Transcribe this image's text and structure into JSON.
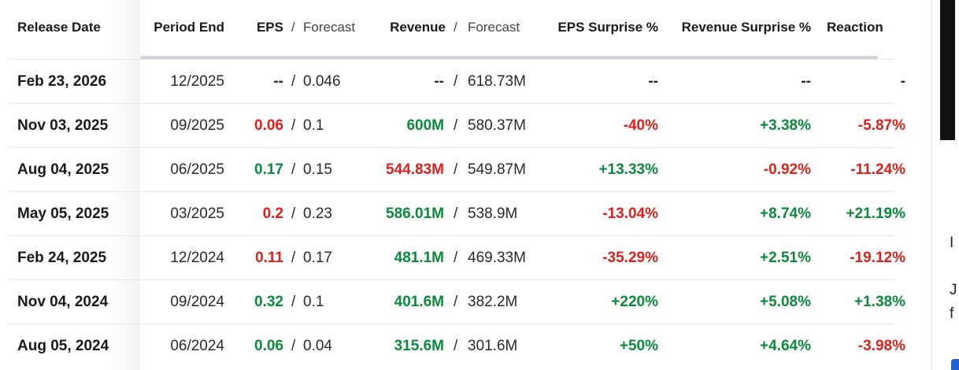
{
  "headers": {
    "release_date": "Release Date",
    "period_end": "Period End",
    "eps": "EPS",
    "eps_forecast": "Forecast",
    "revenue": "Revenue",
    "revenue_forecast": "Forecast",
    "slash": "/",
    "eps_surprise": "EPS Surprise %",
    "revenue_surprise": "Revenue Surprise %",
    "reaction": "Reaction"
  },
  "colors": {
    "positive": "#0a8a3a",
    "negative": "#e0201a"
  },
  "rows": [
    {
      "date": "Feb 23, 2026",
      "period": "12/2025",
      "eps": "--",
      "eps_fc": "0.046",
      "eps_c": "",
      "rev": "--",
      "rev_fc": "618.73M",
      "rev_c": "",
      "eps_s": "--",
      "eps_s_c": "",
      "rev_s": "--",
      "rev_s_c": "",
      "react": "-",
      "react_c": ""
    },
    {
      "date": "Nov 03, 2025",
      "period": "09/2025",
      "eps": "0.06",
      "eps_fc": "0.1",
      "eps_c": "r",
      "rev": "600M",
      "rev_fc": "580.37M",
      "rev_c": "g",
      "eps_s": "-40%",
      "eps_s_c": "r",
      "rev_s": "+3.38%",
      "rev_s_c": "g",
      "react": "-5.87%",
      "react_c": "r"
    },
    {
      "date": "Aug 04, 2025",
      "period": "06/2025",
      "eps": "0.17",
      "eps_fc": "0.15",
      "eps_c": "g",
      "rev": "544.83M",
      "rev_fc": "549.87M",
      "rev_c": "r",
      "eps_s": "+13.33%",
      "eps_s_c": "g",
      "rev_s": "-0.92%",
      "rev_s_c": "r",
      "react": "-11.24%",
      "react_c": "r"
    },
    {
      "date": "May 05, 2025",
      "period": "03/2025",
      "eps": "0.2",
      "eps_fc": "0.23",
      "eps_c": "r",
      "rev": "586.01M",
      "rev_fc": "538.9M",
      "rev_c": "g",
      "eps_s": "-13.04%",
      "eps_s_c": "r",
      "rev_s": "+8.74%",
      "rev_s_c": "g",
      "react": "+21.19%",
      "react_c": "g"
    },
    {
      "date": "Feb 24, 2025",
      "period": "12/2024",
      "eps": "0.11",
      "eps_fc": "0.17",
      "eps_c": "r",
      "rev": "481.1M",
      "rev_fc": "469.33M",
      "rev_c": "g",
      "eps_s": "-35.29%",
      "eps_s_c": "r",
      "rev_s": "+2.51%",
      "rev_s_c": "g",
      "react": "-19.12%",
      "react_c": "r"
    },
    {
      "date": "Nov 04, 2024",
      "period": "09/2024",
      "eps": "0.32",
      "eps_fc": "0.1",
      "eps_c": "g",
      "rev": "401.6M",
      "rev_fc": "382.2M",
      "rev_c": "g",
      "eps_s": "+220%",
      "eps_s_c": "g",
      "rev_s": "+5.08%",
      "rev_s_c": "g",
      "react": "+1.38%",
      "react_c": "g"
    },
    {
      "date": "Aug 05, 2024",
      "period": "06/2024",
      "eps": "0.06",
      "eps_fc": "0.04",
      "eps_c": "g",
      "rev": "315.6M",
      "rev_fc": "301.6M",
      "rev_c": "g",
      "eps_s": "+50%",
      "eps_s_c": "g",
      "rev_s": "+4.64%",
      "rev_s_c": "g",
      "react": "-3.98%",
      "react_c": "r"
    }
  ],
  "side": {
    "line1": "I",
    "line2": "J",
    "line3": "f"
  }
}
